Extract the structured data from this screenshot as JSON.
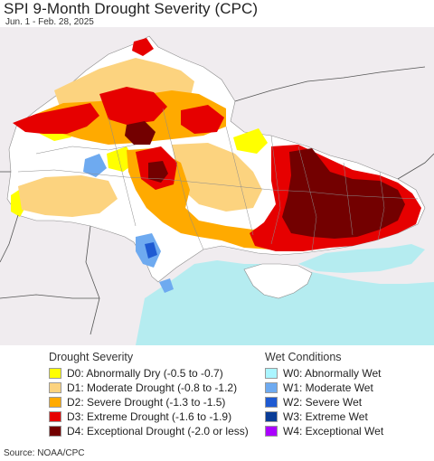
{
  "header": {
    "title": "SPI 9-Month Drought Severity (CPC)",
    "subtitle": "Jun. 1 - Feb. 28, 2025"
  },
  "colors": {
    "land_neutral": "#ffffff",
    "outside_region": "#f0ecef",
    "water": "#b5ecf0",
    "D0": "#ffff00",
    "D1": "#fcd37f",
    "D2": "#ffaa00",
    "D3": "#e60000",
    "D4": "#730000",
    "W0": "#aaf5ff",
    "W1": "#6eaaf0",
    "W2": "#1e5ad2",
    "W3": "#0a3c96",
    "W4": "#aa00ff"
  },
  "legend": {
    "drought_heading": "Drought Severity",
    "wet_heading": "Wet Conditions",
    "drought_items": [
      {
        "label": "D0: Abnormally Dry (-0.5 to -0.7)",
        "color": "#ffff00"
      },
      {
        "label": "D1: Moderate Drought (-0.8 to -1.2)",
        "color": "#fcd37f"
      },
      {
        "label": "D2: Severe Drought (-1.3 to -1.5)",
        "color": "#ffaa00"
      },
      {
        "label": "D3: Extreme Drought (-1.6 to -1.9)",
        "color": "#e60000"
      },
      {
        "label": "D4: Exceptional Drought (-2.0 or less)",
        "color": "#730000"
      }
    ],
    "wet_items": [
      {
        "label": "W0: Abnormally Wet",
        "color": "#aaf5ff"
      },
      {
        "label": "W1: Moderate Wet",
        "color": "#6eaaf0"
      },
      {
        "label": "W2: Severe Wet",
        "color": "#1e5ad2"
      },
      {
        "label": "W3: Extreme Wet",
        "color": "#0a3c96"
      },
      {
        "label": "W4: Exceptional Wet",
        "color": "#aa00ff"
      }
    ]
  },
  "footer": {
    "source": "Source: NOAA/CPC"
  }
}
